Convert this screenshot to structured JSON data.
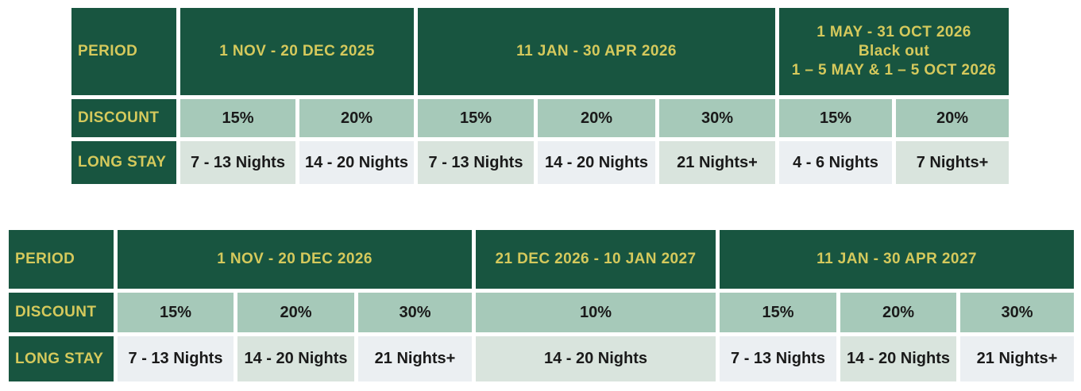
{
  "colors": {
    "header_bg": "#185540",
    "header_text": "#d5c95c",
    "discount_cell_bg": "#a6c9b9",
    "long_stay_cell_green": "#d9e4dd",
    "long_stay_cell_blue": "#ebeff2",
    "body_text": "#1a1a1a",
    "page_bg": "#ffffff"
  },
  "table1": {
    "labels": {
      "period": "PERIOD",
      "discount": "DISCOUNT",
      "long_stay": "LONG STAY"
    },
    "periods": [
      "1 NOV - 20 DEC 2025",
      "11 JAN - 30 APR 2026",
      "1 MAY - 31 OCT 2026\nBlack out\n1 – 5 MAY & 1 – 5 OCT 2026"
    ],
    "discounts": [
      "15%",
      "20%",
      "15%",
      "20%",
      "30%",
      "15%",
      "20%"
    ],
    "long_stays": [
      "7 - 13 Nights",
      "14 - 20 Nights",
      "7 - 13 Nights",
      "14 - 20 Nights",
      "21 Nights+",
      "4 - 6 Nights",
      "7 Nights+"
    ]
  },
  "table2": {
    "labels": {
      "period": "PERIOD",
      "discount": "DISCOUNT",
      "long_stay": "LONG STAY"
    },
    "periods": [
      "1 NOV - 20 DEC 2026",
      "21 DEC 2026 - 10 JAN 2027",
      "11 JAN - 30 APR 2027"
    ],
    "discounts": [
      "15%",
      "20%",
      "30%",
      "10%",
      "15%",
      "20%",
      "30%"
    ],
    "long_stays": [
      "7 - 13 Nights",
      "14 - 20 Nights",
      "21 Nights+",
      "14 - 20 Nights",
      "7 - 13 Nights",
      "14 - 20 Nights",
      "21 Nights+"
    ]
  }
}
